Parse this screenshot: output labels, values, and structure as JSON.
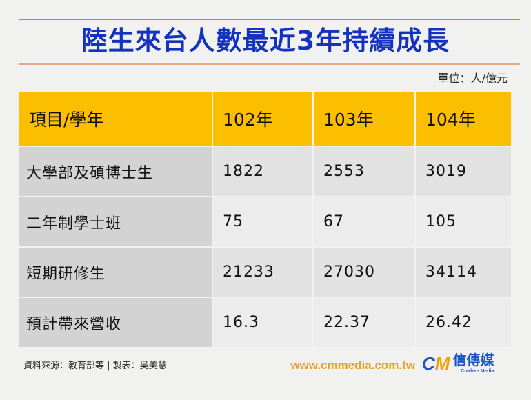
{
  "title": "陸生來台人數最近3年持續成長",
  "unit": "單位：人/億元",
  "chart_data": {
    "type": "table",
    "columns": [
      "項目/學年",
      "102年",
      "103年",
      "104年"
    ],
    "rows": [
      [
        "大學部及碩博士生",
        "1822",
        "2553",
        "3019"
      ],
      [
        "二年制學士班",
        "75",
        "67",
        "105"
      ],
      [
        "短期研修生",
        "21233",
        "27030",
        "34114"
      ],
      [
        "預計帶來營收",
        "16.3",
        "22.37",
        "26.42"
      ]
    ]
  },
  "footer": {
    "source": "資料來源：教育部等 | 製表：吳美慧",
    "website": "www.cmmedia.com.tw",
    "logo_text": "信傳媒",
    "logo_sub": "Credere Media",
    "logo_mark": "CM"
  },
  "colors": {
    "title": "#1432c0",
    "header": "#fbbf00",
    "website": "#f0a020"
  }
}
